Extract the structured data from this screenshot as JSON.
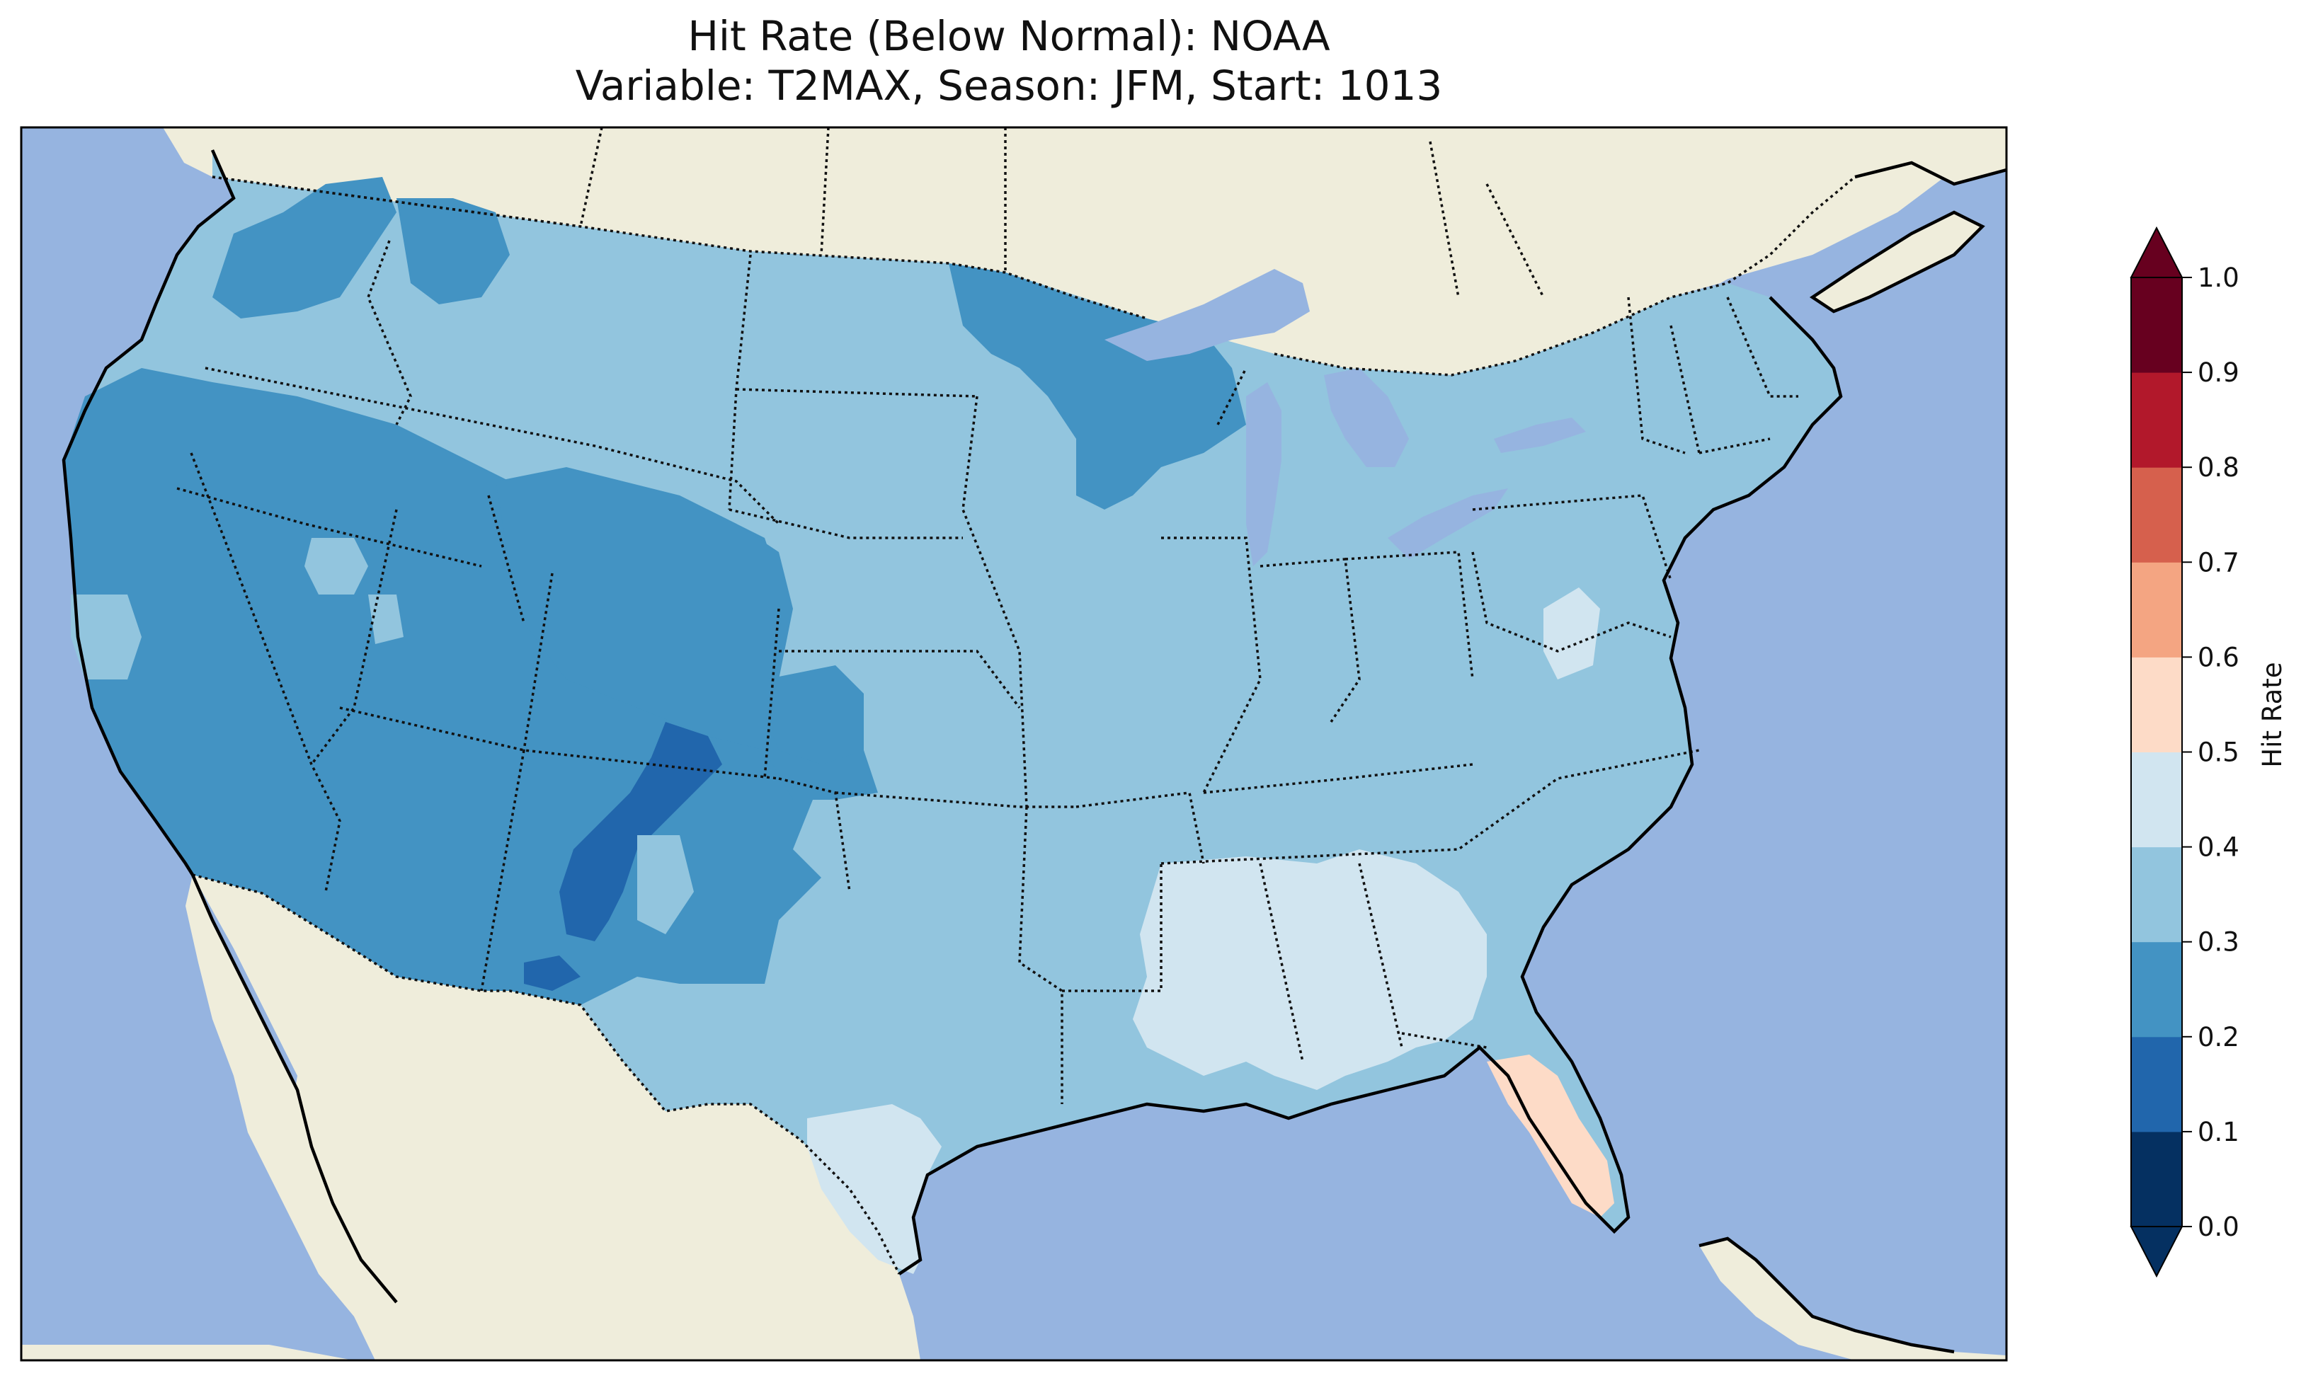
{
  "title": {
    "line1": "Hit Rate (Below Normal): NOAA",
    "line2": "Variable: T2MAX, Season: JFM, Start: 1013"
  },
  "colors": {
    "ocean": "#96b4e0",
    "land": "#efeddb",
    "lake": "#96b4e0",
    "bin_0_1": "#053061",
    "bin_1_2": "#2166ac",
    "bin_2_3": "#4393c3",
    "bin_3_4": "#92c5de",
    "bin_4_5": "#d1e5f0",
    "bin_5_6": "#fddbc7",
    "bin_6_7": "#f4a582",
    "bin_7_8": "#d6604d",
    "bin_8_9": "#b2182b",
    "bin_9_10": "#67001f"
  },
  "colorbar": {
    "label": "Hit Rate",
    "ticks": [
      "0.0",
      "0.1",
      "0.2",
      "0.3",
      "0.4",
      "0.5",
      "0.6",
      "0.7",
      "0.8",
      "0.9",
      "1.0"
    ],
    "extend": "both"
  },
  "regions": [
    {
      "name": "Pacific Northwest",
      "hit_rate_bin": "0.3-0.4"
    },
    {
      "name": "Great Basin / Southwest",
      "hit_rate_bin": "0.2-0.3"
    },
    {
      "name": "Northern New Mexico / Southern Colorado",
      "hit_rate_bin": "0.1-0.2"
    },
    {
      "name": "Northern Plains / Midwest / Northeast",
      "hit_rate_bin": "0.3-0.4"
    },
    {
      "name": "Minnesota / Wisconsin",
      "hit_rate_bin": "0.2-0.3"
    },
    {
      "name": "Southeast (Mississippi, Alabama, Georgia)",
      "hit_rate_bin": "0.4-0.5"
    },
    {
      "name": "South Texas",
      "hit_rate_bin": "0.4-0.5"
    },
    {
      "name": "Florida Peninsula",
      "hit_rate_bin": "0.5-0.6"
    }
  ]
}
